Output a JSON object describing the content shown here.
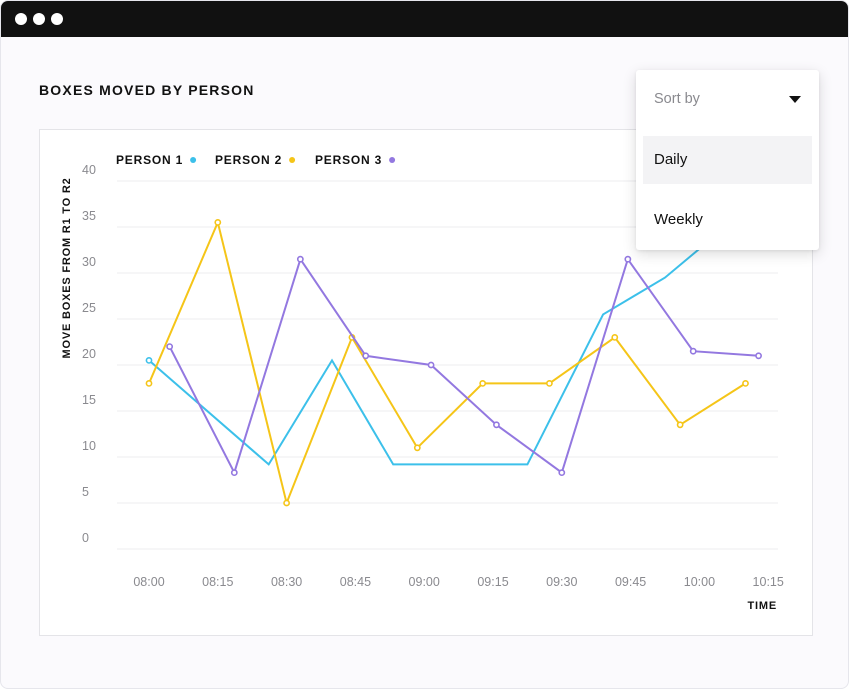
{
  "header": {
    "title": "BOXES MOVED BY PERSON"
  },
  "sort_dropdown": {
    "placeholder": "Sort by",
    "options": [
      "Daily",
      "Weekly"
    ],
    "highlighted": "Daily"
  },
  "colors": {
    "person1": "#3cc0ea",
    "person2": "#f5c518",
    "person3": "#9378e0"
  },
  "chart_data": {
    "type": "line",
    "title": "BOXES MOVED BY PERSON",
    "xlabel": "TIME",
    "ylabel": "MOVE BOXES FROM R1 TO R2",
    "ylim": [
      0,
      40
    ],
    "yticks": [
      0,
      5,
      10,
      15,
      20,
      25,
      30,
      35,
      40
    ],
    "categories": [
      "08:00",
      "08:15",
      "08:30",
      "08:45",
      "09:00",
      "09:15",
      "09:30",
      "09:45",
      "10:00",
      "10:15"
    ],
    "grid": true,
    "legend_position": "top-left",
    "series": [
      {
        "name": "PERSON 1",
        "color": "#3cc0ea",
        "markers": false,
        "points": [
          [
            0.0,
            20.5
          ],
          [
            1.74,
            9.2
          ],
          [
            2.66,
            20.5
          ],
          [
            3.55,
            9.2
          ],
          [
            5.5,
            9.2
          ],
          [
            6.6,
            25.5
          ],
          [
            7.5,
            29.5
          ],
          [
            8.3,
            34.5
          ],
          [
            8.55,
            36
          ]
        ]
      },
      {
        "name": "PERSON 2",
        "color": "#f5c518",
        "markers": true,
        "points": [
          [
            0.0,
            18
          ],
          [
            1.0,
            35.5
          ],
          [
            2.0,
            5
          ],
          [
            2.95,
            23
          ],
          [
            3.9,
            11
          ],
          [
            4.85,
            18
          ],
          [
            5.82,
            18
          ],
          [
            6.77,
            23
          ],
          [
            7.72,
            13.5
          ],
          [
            8.67,
            18
          ]
        ]
      },
      {
        "name": "PERSON 3",
        "color": "#9378e0",
        "markers": true,
        "points": [
          [
            0.3,
            22
          ],
          [
            1.24,
            8.3
          ],
          [
            2.2,
            31.5
          ],
          [
            3.15,
            21
          ],
          [
            4.1,
            20
          ],
          [
            5.05,
            13.5
          ],
          [
            6.0,
            8.3
          ],
          [
            6.96,
            31.5
          ],
          [
            7.91,
            21.5
          ],
          [
            8.86,
            21
          ]
        ]
      }
    ]
  }
}
